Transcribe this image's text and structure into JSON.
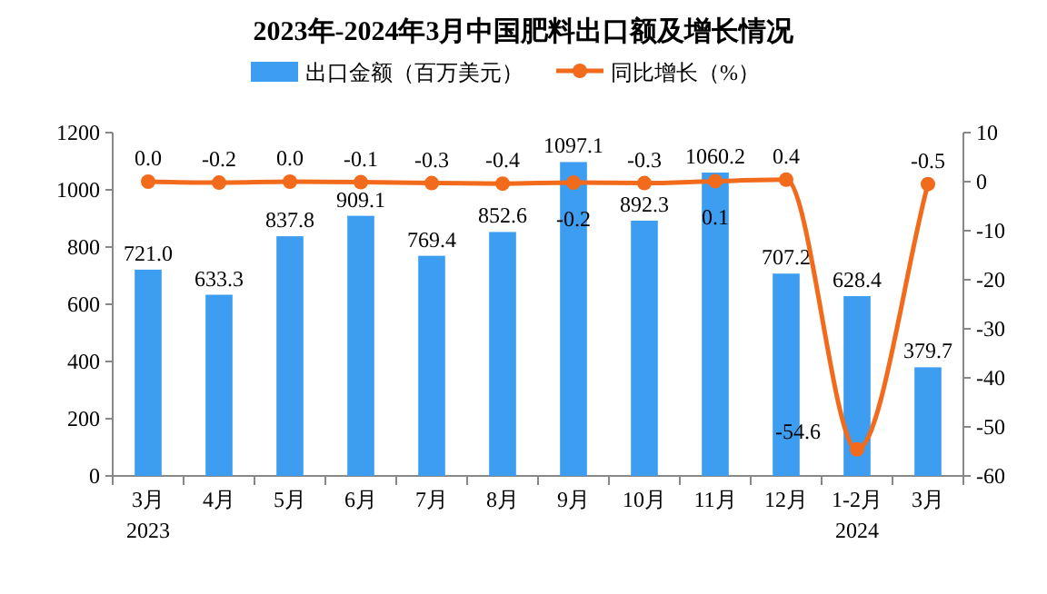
{
  "chart_data": {
    "type": "bar",
    "title": "2023年-2024年3月中国肥料出口额及增长情况",
    "categories": [
      "3月\n2023",
      "4月",
      "5月",
      "6月",
      "7月",
      "8月",
      "9月",
      "10月",
      "11月",
      "12月",
      "1-2月\n2024",
      "3月"
    ],
    "series": [
      {
        "name": "出口金额（百万美元）",
        "color": "#3d9df0",
        "values": [
          721.0,
          633.3,
          837.8,
          909.1,
          769.4,
          852.6,
          1097.1,
          892.3,
          1060.2,
          707.2,
          628.4,
          379.7
        ],
        "value_labels": [
          "721.0",
          "633.3",
          "837.8",
          "909.1",
          "769.4",
          "852.6",
          "1097.1",
          "892.3",
          "1060.2",
          "707.2",
          "628.4",
          "379.7"
        ]
      },
      {
        "name": "同比增长（%）",
        "type": "line",
        "axis": "y2",
        "color": "#f26a1b",
        "marker": "circle",
        "values": [
          0.0,
          -0.2,
          0.0,
          -0.1,
          -0.3,
          -0.4,
          -0.2,
          -0.3,
          0.1,
          0.4,
          -54.6,
          -0.5
        ],
        "value_labels": [
          "0.0",
          "-0.2",
          "0.0",
          "-0.1",
          "-0.3",
          "-0.4",
          "-0.2",
          "-0.3",
          "0.1",
          "0.4",
          "-54.6",
          "-0.5"
        ]
      }
    ],
    "ylim": [
      0,
      1200
    ],
    "yticks": [
      0,
      200,
      400,
      600,
      800,
      1000,
      1200
    ],
    "y2lim": [
      -60,
      10
    ],
    "y2ticks": [
      -60,
      -50,
      -40,
      -30,
      -20,
      -10,
      0,
      10
    ],
    "grid": false,
    "legend": "top"
  }
}
